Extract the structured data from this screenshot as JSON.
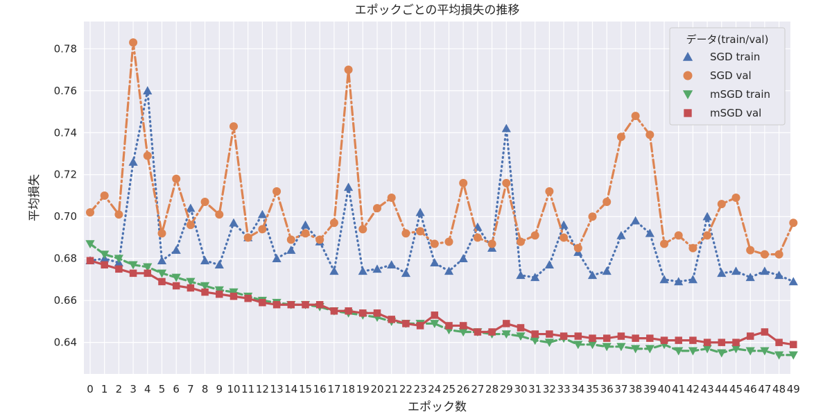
{
  "chart_data": {
    "type": "line",
    "title": "エポックごとの平均損失の推移",
    "xlabel": "エポック数",
    "ylabel": "平均損失",
    "ylim": [
      0.625,
      0.793
    ],
    "yticks": [
      0.64,
      0.66,
      0.68,
      0.7,
      0.72,
      0.74,
      0.76,
      0.78
    ],
    "ytick_labels": [
      "0.64",
      "0.66",
      "0.68",
      "0.70",
      "0.72",
      "0.74",
      "0.76",
      "0.78"
    ],
    "categories": [
      "0",
      "1",
      "2",
      "3",
      "4",
      "5",
      "6",
      "7",
      "8",
      "9",
      "10",
      "11",
      "12",
      "13",
      "14",
      "15",
      "16",
      "17",
      "18",
      "19",
      "20",
      "21",
      "22",
      "23",
      "24",
      "25",
      "26",
      "27",
      "28",
      "29",
      "30",
      "31",
      "32",
      "33",
      "34",
      "35",
      "36",
      "37",
      "38",
      "39",
      "40",
      "41",
      "42",
      "43",
      "44",
      "45",
      "46",
      "47",
      "48",
      "49"
    ],
    "grid": true,
    "legend_position": "top-right",
    "legend_title": "データ(train/val)",
    "series": [
      {
        "name": "SGD train",
        "color": "#4c72b0",
        "marker": "triangle-up",
        "line_style": "dotted",
        "values": [
          0.679,
          0.68,
          0.678,
          0.726,
          0.76,
          0.679,
          0.684,
          0.704,
          0.679,
          0.677,
          0.697,
          0.69,
          0.701,
          0.68,
          0.684,
          0.696,
          0.688,
          0.674,
          0.714,
          0.674,
          0.675,
          0.677,
          0.673,
          0.702,
          0.678,
          0.674,
          0.68,
          0.695,
          0.685,
          0.742,
          0.672,
          0.671,
          0.677,
          0.696,
          0.683,
          0.672,
          0.674,
          0.691,
          0.698,
          0.692,
          0.67,
          0.669,
          0.67,
          0.7,
          0.673,
          0.674,
          0.671,
          0.674,
          0.672,
          0.669
        ]
      },
      {
        "name": "SGD val",
        "color": "#dd8452",
        "marker": "circle",
        "line_style": "dashdot",
        "values": [
          0.702,
          0.71,
          0.701,
          0.783,
          0.729,
          0.692,
          0.718,
          0.696,
          0.707,
          0.701,
          0.743,
          0.69,
          0.694,
          0.712,
          0.689,
          0.692,
          0.689,
          0.697,
          0.77,
          0.694,
          0.704,
          0.709,
          0.692,
          0.693,
          0.687,
          0.688,
          0.716,
          0.69,
          0.687,
          0.716,
          0.688,
          0.691,
          0.712,
          0.69,
          0.685,
          0.7,
          0.707,
          0.738,
          0.748,
          0.739,
          0.687,
          0.691,
          0.685,
          0.691,
          0.706,
          0.709,
          0.684,
          0.682,
          0.682,
          0.697
        ]
      },
      {
        "name": "mSGD train",
        "color": "#55a868",
        "marker": "triangle-down",
        "line_style": "dashed",
        "values": [
          0.687,
          0.682,
          0.68,
          0.677,
          0.676,
          0.673,
          0.671,
          0.669,
          0.667,
          0.665,
          0.664,
          0.662,
          0.66,
          0.659,
          0.658,
          0.658,
          0.657,
          0.655,
          0.654,
          0.653,
          0.652,
          0.65,
          0.649,
          0.649,
          0.649,
          0.646,
          0.645,
          0.645,
          0.644,
          0.644,
          0.643,
          0.641,
          0.64,
          0.642,
          0.639,
          0.639,
          0.638,
          0.638,
          0.637,
          0.637,
          0.639,
          0.636,
          0.636,
          0.637,
          0.635,
          0.637,
          0.636,
          0.636,
          0.634,
          0.634
        ]
      },
      {
        "name": "mSGD val",
        "color": "#c44e52",
        "marker": "square",
        "line_style": "solid",
        "values": [
          0.679,
          0.677,
          0.675,
          0.673,
          0.673,
          0.669,
          0.667,
          0.666,
          0.664,
          0.663,
          0.662,
          0.661,
          0.659,
          0.658,
          0.658,
          0.658,
          0.658,
          0.655,
          0.655,
          0.654,
          0.654,
          0.651,
          0.649,
          0.648,
          0.653,
          0.648,
          0.648,
          0.645,
          0.645,
          0.649,
          0.647,
          0.644,
          0.644,
          0.643,
          0.643,
          0.642,
          0.642,
          0.643,
          0.642,
          0.642,
          0.641,
          0.641,
          0.641,
          0.64,
          0.64,
          0.64,
          0.643,
          0.645,
          0.64,
          0.639
        ]
      }
    ]
  }
}
